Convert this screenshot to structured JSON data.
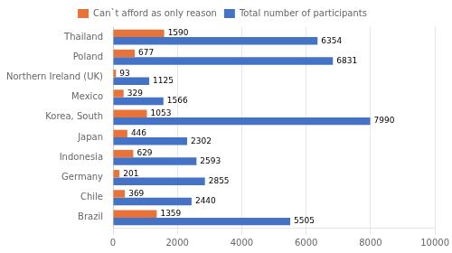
{
  "chart_data": {
    "type": "bar",
    "orientation": "horizontal",
    "categories": [
      "Thailand",
      "Poland",
      "Northern Ireland (UK)",
      "Mexico",
      "Korea, South",
      "Japan",
      "Indonesia",
      "Germany",
      "Chile",
      "Brazil"
    ],
    "series": [
      {
        "name": "Can`t afford as only reason",
        "color": "#E8733A",
        "values": [
          1590,
          677,
          93,
          329,
          1053,
          446,
          629,
          201,
          369,
          1359
        ]
      },
      {
        "name": "Total number of participants",
        "color": "#4472C4",
        "values": [
          6354,
          6831,
          1125,
          1566,
          7990,
          2302,
          2593,
          2855,
          2440,
          5505
        ]
      }
    ],
    "xlim": [
      0,
      10000
    ],
    "xticks": [
      0,
      2000,
      4000,
      6000,
      8000,
      10000
    ],
    "grid": true,
    "legend": "top",
    "data_labels": true
  }
}
